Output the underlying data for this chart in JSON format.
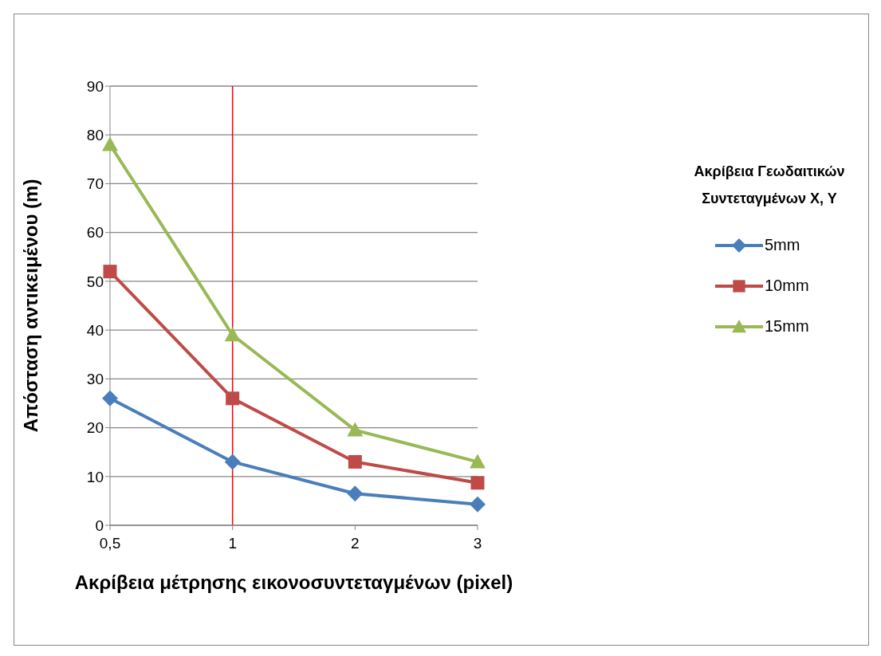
{
  "chart_data": {
    "type": "line",
    "xlabel": "Ακρίβεια μέτρησης εικονοσυντεταγμένων (pixel)",
    "ylabel": "Απόσταση αντικειμένου (m)",
    "legend_title": "Ακρίβεια Γεωδαιτικών Συντεταγμένων X, Y",
    "categories": [
      "0,5",
      "1",
      "2",
      "3"
    ],
    "series": [
      {
        "name": "5mm",
        "color": "#4a7ebb",
        "marker": "diamond",
        "values": [
          26,
          13,
          6.5,
          4.3
        ]
      },
      {
        "name": "10mm",
        "color": "#be4b48",
        "marker": "square",
        "values": [
          52,
          26,
          13,
          8.7
        ]
      },
      {
        "name": "15mm",
        "color": "#98b954",
        "marker": "triangle",
        "values": [
          78,
          39,
          19.5,
          13
        ]
      }
    ],
    "ylim": [
      0,
      90
    ],
    "yticks": [
      0,
      10,
      20,
      30,
      40,
      50,
      60,
      70,
      80,
      90
    ],
    "grid": "y",
    "legend": "right",
    "ref_lines": [
      {
        "axis": "x",
        "value": "1",
        "color": "#ff0000"
      }
    ]
  }
}
